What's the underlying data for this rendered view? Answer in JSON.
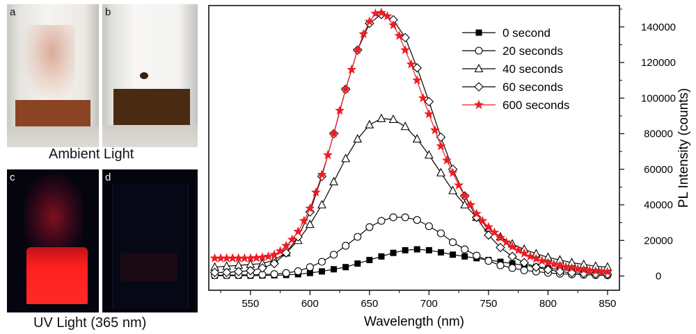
{
  "photos": {
    "a": {
      "letter": "a"
    },
    "b": {
      "letter": "b"
    },
    "c": {
      "letter": "c"
    },
    "d": {
      "letter": "d"
    },
    "ambient_caption": "Ambient Light",
    "uv_caption": "UV Light (365 nm)"
  },
  "chart_data": {
    "type": "line",
    "xlabel": "Wavelength (nm)",
    "ylabel": "PL Intensity (counts)",
    "xlim": [
      515,
      860
    ],
    "ylim": [
      -8000,
      152000
    ],
    "x_ticks": [
      550,
      600,
      650,
      700,
      750,
      800,
      850
    ],
    "y_ticks": [
      0,
      20000,
      40000,
      60000,
      80000,
      100000,
      120000,
      140000
    ],
    "legend_position": "top-right",
    "series": [
      {
        "name": "0 second",
        "marker": "square-filled",
        "color": "#000000",
        "x": [
          520,
          530,
          540,
          550,
          560,
          570,
          580,
          590,
          600,
          610,
          620,
          630,
          640,
          650,
          660,
          670,
          680,
          690,
          700,
          710,
          720,
          730,
          740,
          750,
          760,
          770,
          780,
          790,
          800,
          810,
          820,
          830,
          840,
          850
        ],
        "y": [
          200,
          200,
          200,
          200,
          300,
          400,
          600,
          1000,
          1700,
          2600,
          3800,
          5000,
          7000,
          9000,
          11000,
          13000,
          14500,
          15000,
          14500,
          13300,
          12000,
          11000,
          10000,
          9000,
          8000,
          7000,
          6000,
          5200,
          4400,
          3700,
          3000,
          2400,
          1800,
          1300
        ]
      },
      {
        "name": "20 seconds",
        "marker": "circle-open",
        "color": "#000000",
        "x": [
          520,
          530,
          540,
          550,
          560,
          570,
          580,
          590,
          600,
          610,
          620,
          630,
          640,
          650,
          660,
          670,
          680,
          690,
          700,
          710,
          720,
          730,
          740,
          750,
          760,
          770,
          780,
          790,
          800,
          810,
          820,
          830,
          840,
          850
        ],
        "y": [
          500,
          500,
          600,
          700,
          800,
          1100,
          1700,
          2700,
          5000,
          8000,
          12000,
          17000,
          22000,
          27500,
          31000,
          33000,
          33000,
          31500,
          28000,
          24000,
          19000,
          15000,
          11500,
          8500,
          6000,
          4500,
          3200,
          2500,
          1800,
          1300,
          900,
          700,
          500,
          400
        ]
      },
      {
        "name": "40 seconds",
        "marker": "triangle-open",
        "color": "#000000",
        "x": [
          520,
          530,
          540,
          550,
          560,
          570,
          580,
          590,
          600,
          610,
          620,
          630,
          640,
          650,
          660,
          670,
          680,
          690,
          700,
          710,
          720,
          730,
          740,
          750,
          760,
          770,
          780,
          790,
          800,
          810,
          820,
          830,
          840,
          850
        ],
        "y": [
          5000,
          5500,
          6000,
          6500,
          7000,
          9000,
          13000,
          20000,
          29000,
          40000,
          53000,
          66000,
          77000,
          85000,
          88500,
          88000,
          84000,
          77000,
          68000,
          58000,
          48000,
          40000,
          33000,
          27000,
          22000,
          18000,
          15000,
          12500,
          10500,
          9000,
          7500,
          6500,
          5500,
          5000
        ]
      },
      {
        "name": "60 seconds",
        "marker": "diamond-open",
        "color": "#000000",
        "x": [
          520,
          530,
          540,
          550,
          560,
          570,
          580,
          590,
          600,
          610,
          620,
          630,
          640,
          650,
          660,
          670,
          680,
          690,
          700,
          710,
          720,
          730,
          740,
          750,
          760,
          770,
          780,
          790,
          800,
          810,
          820,
          830,
          840,
          850
        ],
        "y": [
          2000,
          2000,
          2500,
          3000,
          4500,
          7000,
          13000,
          22000,
          36000,
          56000,
          80000,
          105000,
          127000,
          142000,
          147000,
          144000,
          134000,
          117000,
          98000,
          78000,
          60000,
          45000,
          33000,
          23000,
          16000,
          11000,
          7500,
          5000,
          3500,
          2500,
          1800,
          1500,
          1200,
          1000
        ]
      },
      {
        "name": "600 seconds",
        "marker": "star",
        "color": "#ee1c24",
        "x": [
          520,
          525,
          530,
          535,
          540,
          545,
          550,
          555,
          560,
          565,
          570,
          575,
          580,
          585,
          590,
          595,
          600,
          605,
          610,
          615,
          620,
          625,
          630,
          635,
          640,
          645,
          650,
          655,
          660,
          665,
          670,
          675,
          680,
          685,
          690,
          695,
          700,
          705,
          710,
          715,
          720,
          725,
          730,
          735,
          740,
          745,
          750,
          755,
          760,
          765,
          770,
          775,
          780,
          785,
          790,
          795,
          800,
          805,
          810,
          815,
          820,
          825,
          830,
          835,
          840,
          845,
          850
        ],
        "y": [
          10000,
          10000,
          10000,
          10000,
          10000,
          10000,
          10000,
          10200,
          10500,
          11000,
          12000,
          14000,
          17000,
          20500,
          25000,
          31000,
          38000,
          47000,
          57000,
          68000,
          80000,
          93000,
          105000,
          116000,
          127000,
          136000,
          143000,
          147500,
          148000,
          146000,
          141000,
          135000,
          127000,
          119000,
          110000,
          100000,
          91000,
          82000,
          73000,
          65000,
          58000,
          51000,
          45000,
          40000,
          35000,
          31000,
          27500,
          24500,
          21500,
          19000,
          16500,
          14500,
          12700,
          11000,
          9700,
          8500,
          7500,
          6600,
          5800,
          5100,
          4500,
          4000,
          3500,
          3100,
          2800,
          2500,
          2300
        ]
      }
    ]
  }
}
